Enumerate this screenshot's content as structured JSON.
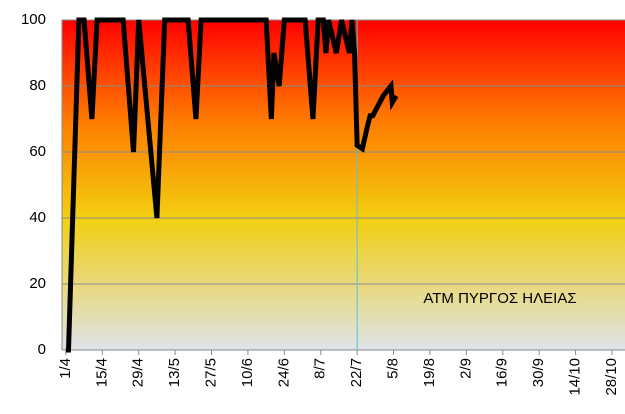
{
  "chart_data": {
    "type": "line",
    "annotation": "ATM ΠΥΡΓΟΣ ΗΛΕΙΑΣ",
    "x": [
      0,
      1,
      5,
      7,
      10,
      12,
      22,
      26,
      28,
      35,
      38,
      47,
      50,
      52,
      77,
      79,
      80,
      82,
      84,
      92,
      95,
      97,
      99,
      100,
      101,
      104,
      106,
      109,
      110,
      111,
      112,
      114,
      116,
      117,
      118,
      120,
      122,
      123,
      125,
      125.5,
      127
    ],
    "values": [
      0,
      0,
      100,
      100,
      70,
      100,
      100,
      60,
      100,
      40,
      100,
      100,
      70,
      100,
      100,
      70,
      90,
      80,
      100,
      100,
      70,
      100,
      100,
      90,
      100,
      90,
      100,
      90,
      100,
      90,
      62,
      61,
      68,
      71,
      71,
      74,
      77,
      78,
      80,
      75,
      77
    ],
    "color": "#000000",
    "reference_x": 112,
    "reference_color": "#5bc0d8",
    "xlim": [
      -1.5,
      215
    ],
    "xticks": [
      {
        "value": 0,
        "label": "1/4"
      },
      {
        "value": 14,
        "label": "15/4"
      },
      {
        "value": 28,
        "label": "29/4"
      },
      {
        "value": 42,
        "label": "13/5"
      },
      {
        "value": 56,
        "label": "27/5"
      },
      {
        "value": 70,
        "label": "10/6"
      },
      {
        "value": 84,
        "label": "24/6"
      },
      {
        "value": 98,
        "label": "8/7"
      },
      {
        "value": 112,
        "label": "22/7"
      },
      {
        "value": 126,
        "label": "5/8"
      },
      {
        "value": 140,
        "label": "19/8"
      },
      {
        "value": 154,
        "label": "2/9"
      },
      {
        "value": 168,
        "label": "16/9"
      },
      {
        "value": 182,
        "label": "30/9"
      },
      {
        "value": 196,
        "label": "14/10"
      },
      {
        "value": 210,
        "label": "28/10"
      }
    ],
    "ylim": [
      0,
      100
    ],
    "yticks": [
      0,
      20,
      40,
      60,
      80,
      100
    ],
    "grid": true
  }
}
